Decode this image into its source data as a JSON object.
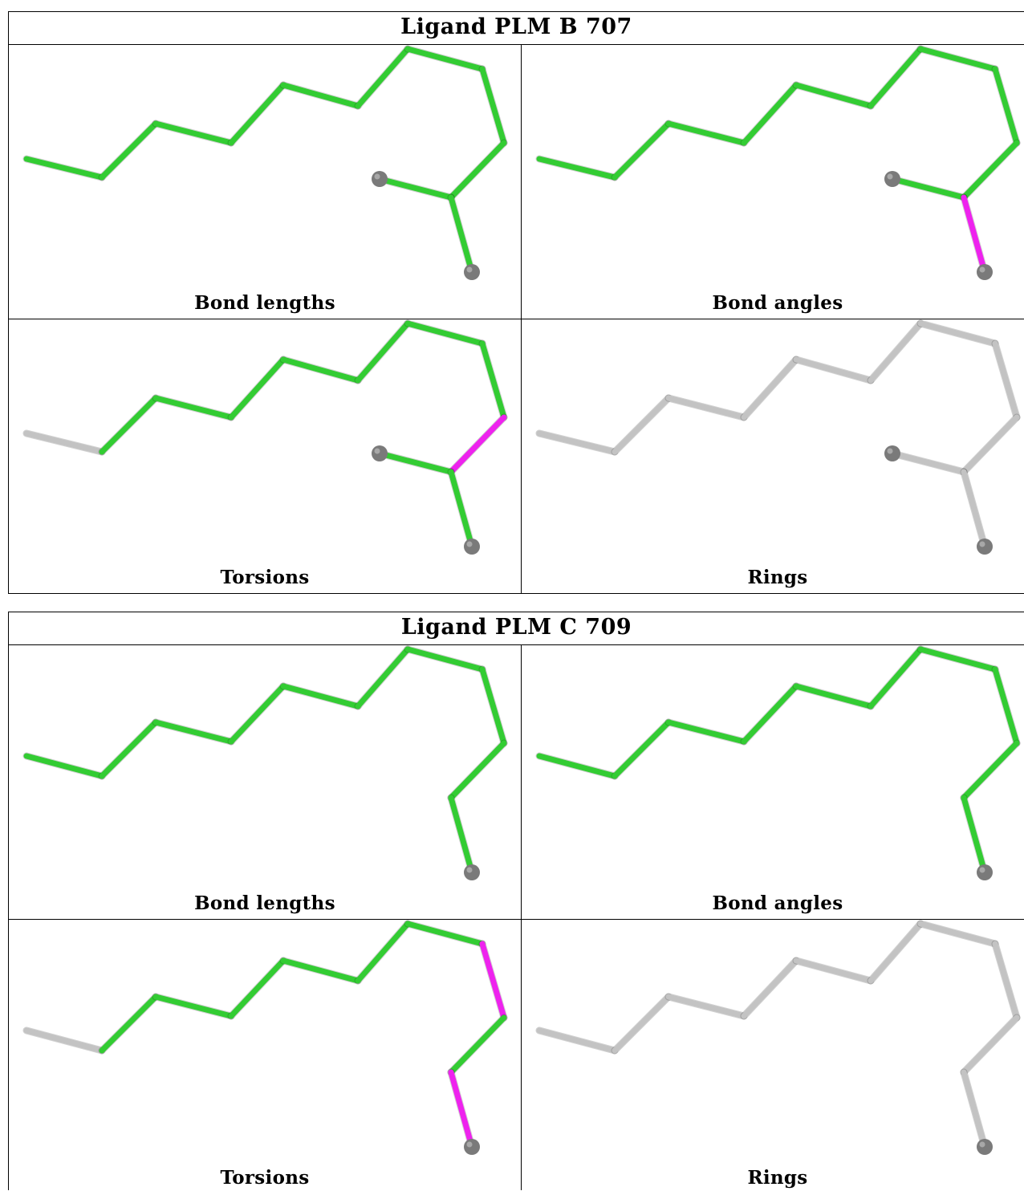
{
  "colors": {
    "good": "#33cc33",
    "outlier": "#ee22ee",
    "neutral": "#c3c3c3",
    "atom": "#7a7a7a"
  },
  "icons": {
    "atom_ball": "sphere-icon"
  },
  "blocks": [
    {
      "title": "Ligand PLM B 707",
      "panels": [
        {
          "label": "Bond lengths",
          "chain_colors": [
            "good",
            "good",
            "good",
            "good",
            "good",
            "good",
            "good",
            "good",
            "good",
            "good",
            "good",
            "outlier",
            "outlier"
          ]
        },
        {
          "label": "Bond angles",
          "chain_colors": [
            "good",
            "good",
            "good",
            "good",
            "good",
            "good",
            "good",
            "good",
            "good",
            "good",
            "outlier",
            "outlier",
            "outlier"
          ]
        },
        {
          "label": "Torsions",
          "chain_colors": [
            "neutral",
            "good",
            "good",
            "good",
            "good",
            "good",
            "good",
            "good",
            "outlier",
            "good",
            "good",
            "neutral",
            "neutral"
          ]
        },
        {
          "label": "Rings",
          "chain_colors": [
            "neutral",
            "neutral",
            "neutral",
            "neutral",
            "neutral",
            "neutral",
            "neutral",
            "neutral",
            "neutral",
            "neutral",
            "neutral",
            "neutral",
            "neutral"
          ]
        }
      ]
    },
    {
      "title": "Ligand PLM C 709",
      "panels": [
        {
          "label": "Bond lengths",
          "chain_colors": [
            "good",
            "good",
            "good",
            "good",
            "good",
            "good",
            "good",
            "good",
            "good",
            "good",
            "neutral",
            "good"
          ]
        },
        {
          "label": "Bond angles",
          "chain_colors": [
            "good",
            "good",
            "good",
            "good",
            "good",
            "good",
            "good",
            "good",
            "good",
            "good",
            "good",
            "good"
          ]
        },
        {
          "label": "Torsions",
          "chain_colors": [
            "neutral",
            "good",
            "good",
            "good",
            "good",
            "good",
            "good",
            "outlier",
            "good",
            "outlier",
            "neutral",
            "neutral"
          ]
        },
        {
          "label": "Rings",
          "chain_colors": [
            "neutral",
            "neutral",
            "neutral",
            "neutral",
            "neutral",
            "neutral",
            "neutral",
            "neutral",
            "neutral",
            "neutral",
            "neutral",
            "neutral"
          ]
        }
      ]
    }
  ]
}
